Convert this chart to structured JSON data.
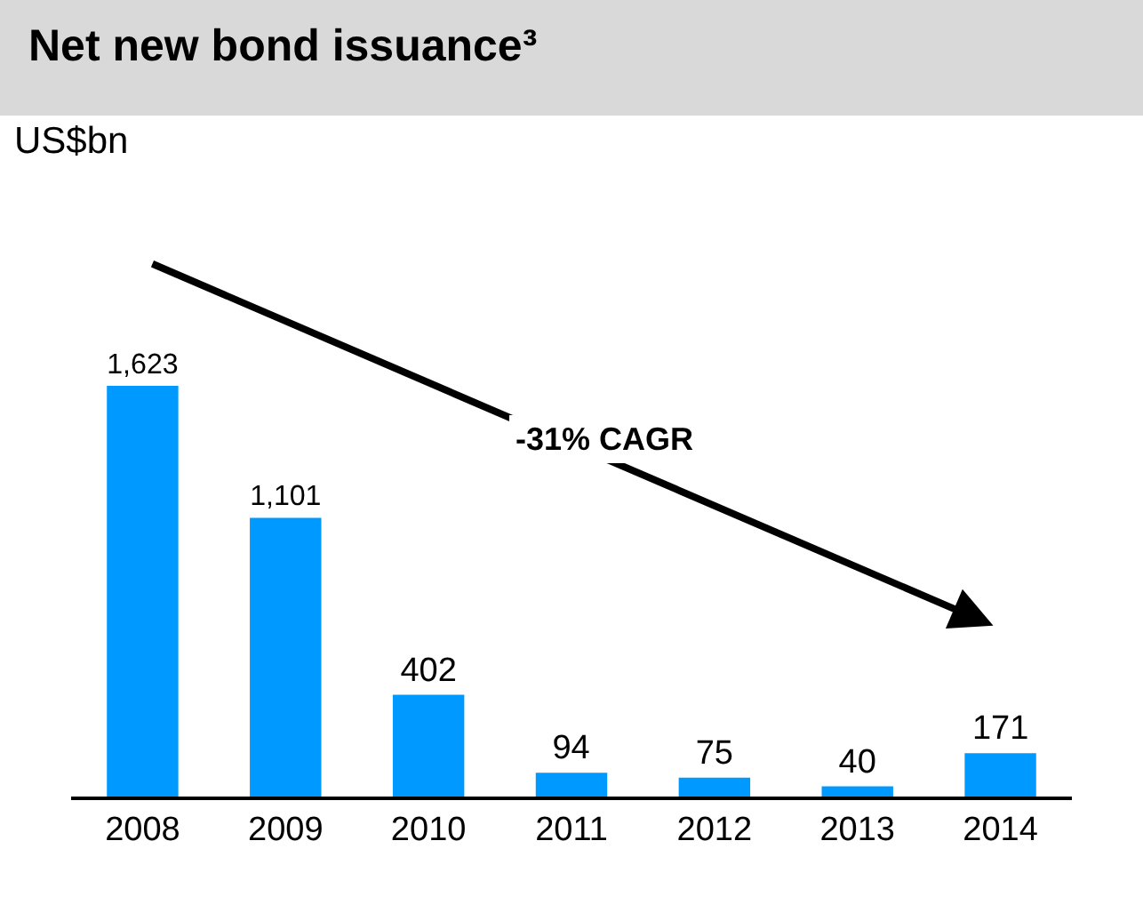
{
  "chart_data": {
    "type": "bar",
    "title": "Net new bond issuance³",
    "categories": [
      "2008",
      "2009",
      "2010",
      "2011",
      "2012",
      "2013",
      "2014"
    ],
    "values": [
      1623,
      1101,
      402,
      94,
      75,
      40,
      171
    ],
    "value_labels": [
      "1,623",
      "1,101",
      "402",
      "94",
      "75",
      "40",
      "171"
    ],
    "color": "#0099ff",
    "annotations": [
      "US$bn",
      "-31% CAGR"
    ]
  }
}
